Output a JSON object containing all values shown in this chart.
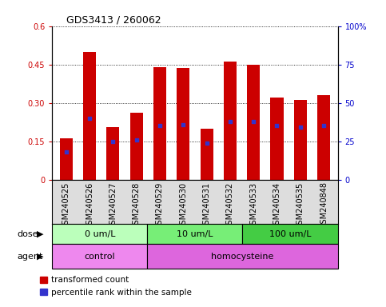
{
  "title": "GDS3413 / 260062",
  "samples": [
    "GSM240525",
    "GSM240526",
    "GSM240527",
    "GSM240528",
    "GSM240529",
    "GSM240530",
    "GSM240531",
    "GSM240532",
    "GSM240533",
    "GSM240534",
    "GSM240535",
    "GSM240848"
  ],
  "transformed_count": [
    0.16,
    0.5,
    0.205,
    0.26,
    0.44,
    0.435,
    0.2,
    0.46,
    0.45,
    0.32,
    0.31,
    0.33
  ],
  "percentile_rank_pct": [
    18,
    40,
    25,
    26,
    35,
    36,
    24,
    38,
    38,
    35,
    34,
    35
  ],
  "bar_color": "#cc0000",
  "dot_color": "#3333cc",
  "ylim_left": [
    0,
    0.6
  ],
  "ylim_right": [
    0,
    100
  ],
  "yticks_left": [
    0,
    0.15,
    0.3,
    0.45,
    0.6
  ],
  "yticks_right": [
    0,
    25,
    50,
    75,
    100
  ],
  "ytick_labels_left": [
    "0",
    "0.15",
    "0.30",
    "0.45",
    "0.6"
  ],
  "ytick_labels_right": [
    "0",
    "25",
    "50",
    "75",
    "100%"
  ],
  "dose_groups": [
    {
      "label": "0 um/L",
      "start": 0,
      "end": 4,
      "color": "#bbffbb"
    },
    {
      "label": "10 um/L",
      "start": 4,
      "end": 8,
      "color": "#77ee77"
    },
    {
      "label": "100 um/L",
      "start": 8,
      "end": 12,
      "color": "#44cc44"
    }
  ],
  "agent_groups": [
    {
      "label": "control",
      "start": 0,
      "end": 4,
      "color": "#ee88ee"
    },
    {
      "label": "homocysteine",
      "start": 4,
      "end": 12,
      "color": "#dd66dd"
    }
  ],
  "dose_label": "dose",
  "agent_label": "agent",
  "legend_red_label": "transformed count",
  "legend_blue_label": "percentile rank within the sample",
  "tick_label_color_left": "#cc0000",
  "tick_label_color_right": "#0000cc",
  "bar_width": 0.55,
  "xlabel_bg": "#cccccc",
  "title_fontsize": 9,
  "tick_fontsize": 7,
  "label_fontsize": 8,
  "dose_agent_fontsize": 8
}
